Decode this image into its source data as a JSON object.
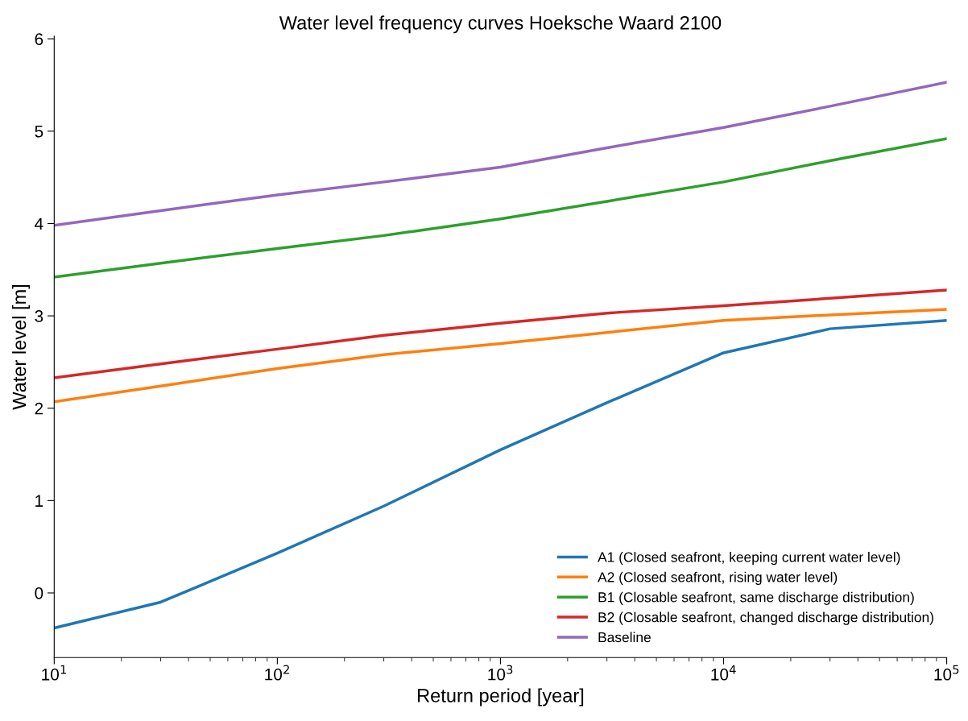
{
  "chart_data": {
    "type": "line",
    "title": "Water level frequency curves Hoeksche Waard 2100",
    "xlabel": "Return period [year]",
    "ylabel": "Water level [m]",
    "log": "x",
    "x": [
      10,
      30,
      100,
      300,
      1000,
      3000,
      10000,
      30000,
      100000
    ],
    "series": [
      {
        "name": "A1 (Closed seafront, keeping current water level)",
        "color": "#1f77b4",
        "values": [
          -0.38,
          -0.1,
          0.43,
          0.94,
          1.55,
          2.06,
          2.6,
          2.86,
          2.95
        ]
      },
      {
        "name": "A2 (Closed seafront, rising water level)",
        "color": "#ff7f0e",
        "values": [
          2.07,
          2.24,
          2.43,
          2.58,
          2.7,
          2.82,
          2.95,
          3.01,
          3.07
        ]
      },
      {
        "name": "B1 (Closable seafront, same discharge distribution)",
        "color": "#2ca02c",
        "values": [
          3.42,
          3.57,
          3.73,
          3.87,
          4.05,
          4.24,
          4.45,
          4.68,
          4.92
        ]
      },
      {
        "name": "B2 (Closable seafront, changed discharge distribution)",
        "color": "#d62728",
        "values": [
          2.33,
          2.48,
          2.64,
          2.79,
          2.92,
          3.03,
          3.11,
          3.19,
          3.28
        ]
      },
      {
        "name": "Baseline",
        "color": "#9467bd",
        "values": [
          3.98,
          4.14,
          4.31,
          4.45,
          4.61,
          4.82,
          5.04,
          5.27,
          5.53
        ]
      }
    ],
    "xlim": [
      10,
      100000
    ],
    "xticks": [
      {
        "value": 10,
        "label": "10$^{1}$"
      },
      {
        "value": 100,
        "label": "10$^{2}$"
      },
      {
        "value": 1000,
        "label": "10$^{3}$"
      },
      {
        "value": 10000,
        "label": "10$^{4}$"
      },
      {
        "value": 100000,
        "label": "10$^{5}$"
      }
    ],
    "ylim": [
      -0.7,
      6.03
    ],
    "yticks": [
      0,
      1,
      2,
      3,
      4,
      5,
      6
    ],
    "grid": false,
    "legend": "lower right",
    "marker": "none",
    "line_style": "solid"
  }
}
